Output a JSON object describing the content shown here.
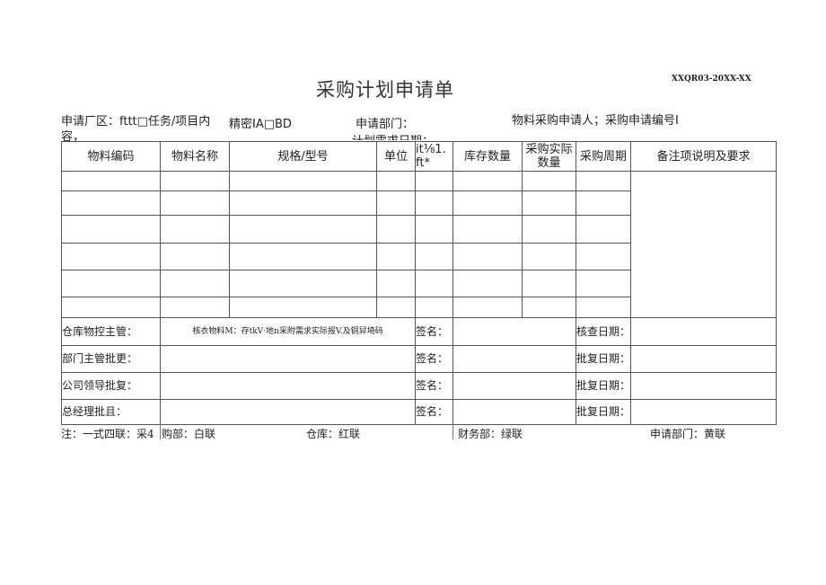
{
  "title": "采购计划申请单",
  "form_code": "XXQR03-20XX-XX",
  "header": {
    "plant": "申请厂区：fttt□任务/项目内",
    "plant_cont": "容，",
    "secret": "精密IA□BD",
    "dept": "申请部门：",
    "applicant": "物料采购申请人；采购申请编号I",
    "need_date": "计划需求日期："
  },
  "columns": [
    "物料编码",
    "物料名称",
    "规格/型号",
    "单位",
    "it⅛1. ft*",
    "库存数量",
    "采购实际数量",
    "采购周期",
    "备注项说明及要求"
  ],
  "approvals": [
    {
      "label": "仓库物控主管：",
      "content": "核衣物料M：存tkV·地n采附需求实际报V.及铜舁埼码",
      "sign": "签名：",
      "date_label": "核查日期："
    },
    {
      "label": "部门主管批更：",
      "content": "",
      "sign": "签名：",
      "date_label": "批复日期："
    },
    {
      "label": "公司领导批复：",
      "content": "",
      "sign": "签名：",
      "date_label": "批复日期："
    },
    {
      "label": "总经理批且：",
      "content": "",
      "sign": "签名：",
      "date_label": "批复日期："
    }
  ],
  "footer": {
    "note": "注：一式四联：采4",
    "purchase": "购部：白联",
    "warehouse": "仓库：红联",
    "finance": "财务部：绿联",
    "dept": "申请部门：黄联"
  }
}
